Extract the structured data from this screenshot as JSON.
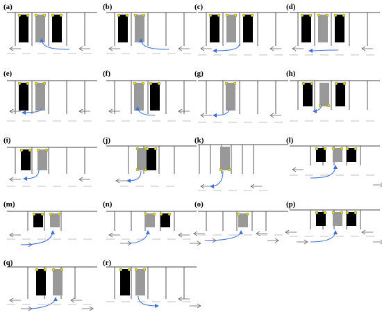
{
  "panels": [
    {
      "label": "(a)",
      "cars": [
        "black",
        "gray",
        "black"
      ]
    },
    {
      "label": "(b)",
      "cars": [
        "black",
        "gray"
      ]
    },
    {
      "label": "(c)",
      "cars": [
        "black",
        "gray",
        "black"
      ]
    },
    {
      "label": "(d)",
      "cars": [
        "black",
        "gray",
        "black"
      ]
    },
    {
      "label": "(e)",
      "cars": [
        "black",
        "gray"
      ]
    },
    {
      "label": "(f)",
      "cars": [
        "gray",
        "black"
      ]
    },
    {
      "label": "(g)",
      "cars": [
        "gray"
      ]
    },
    {
      "label": "(h)",
      "cars": [
        "black",
        "gray",
        "black"
      ]
    },
    {
      "label": "(i)",
      "cars": [
        "black",
        "gray"
      ]
    },
    {
      "label": "(j)",
      "cars": [
        "gray",
        "black"
      ]
    },
    {
      "label": "(k)",
      "cars": [
        "gray"
      ]
    },
    {
      "label": "(l)",
      "cars": [
        "black",
        "gray",
        "black"
      ]
    },
    {
      "label": "(m)",
      "cars": [
        "black",
        "gray"
      ]
    },
    {
      "label": "(n)",
      "cars": [
        "gray",
        "black"
      ]
    },
    {
      "label": "(o)",
      "cars": [
        "gray"
      ]
    },
    {
      "label": "(p)",
      "cars": [
        "black",
        "gray",
        "black"
      ]
    },
    {
      "label": "(q)",
      "cars": [
        "black",
        "gray"
      ]
    },
    {
      "label": "(r)",
      "cars": [
        "black",
        "gray"
      ]
    }
  ],
  "colors": {
    "ego_car": "#999999",
    "parked_car": "#000000",
    "trajectory": "#3a6fd8",
    "marker": "#e8e000",
    "lines": "#444444",
    "lane_arrow": "#666666"
  }
}
